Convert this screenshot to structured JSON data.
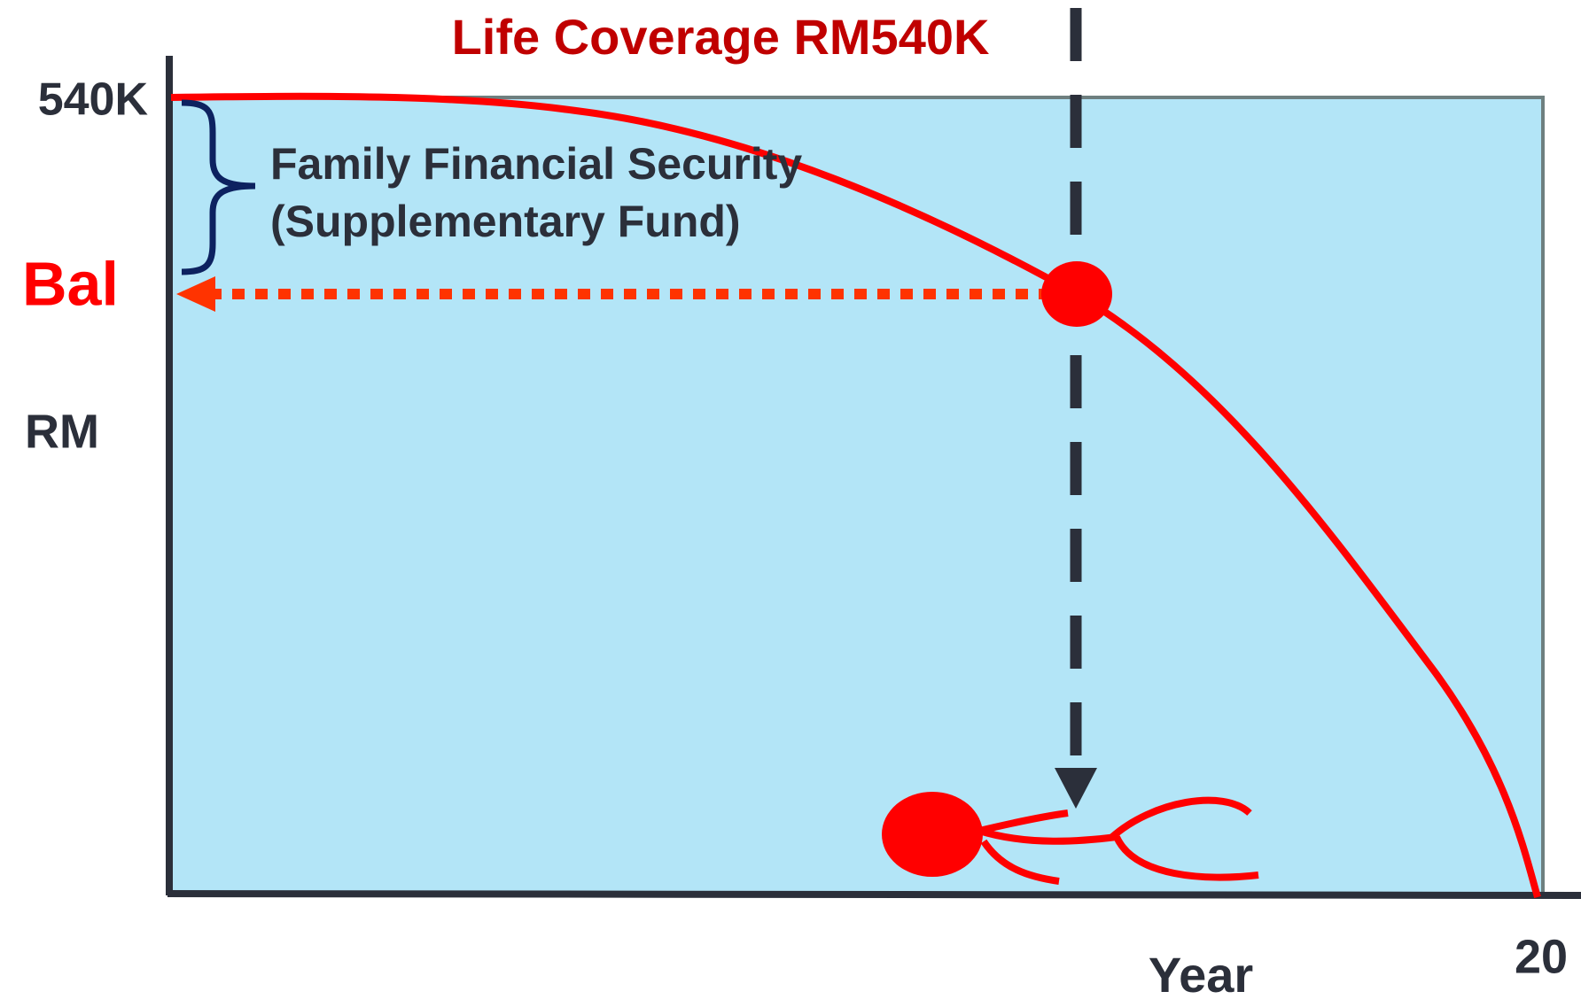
{
  "title": "Life Coverage RM540K",
  "y_axis": {
    "top_label": "540K",
    "balance_label": "Bal",
    "unit_label": "RM"
  },
  "annotation": {
    "line1": "Family Financial Security",
    "line2": "(Supplementary Fund)"
  },
  "x_axis": {
    "label": "Year",
    "end_label": "20"
  }
}
